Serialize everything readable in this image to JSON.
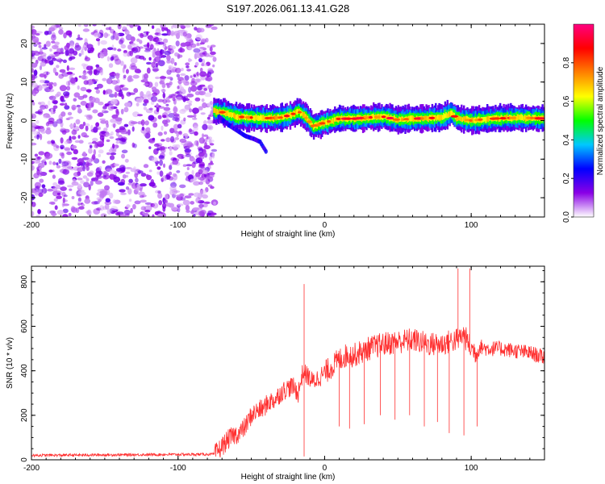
{
  "title": "S197.2026.061.13.41.G28",
  "chart_data": [
    {
      "type": "heatmap",
      "panel": "spectrogram",
      "xlabel": "Height of straight line (km)",
      "ylabel": "Frequency (Hz)",
      "xlim": [
        -200,
        150
      ],
      "ylim": [
        -25,
        25
      ],
      "xticks": [
        -200,
        -100,
        0,
        100
      ],
      "yticks": [
        -20,
        -10,
        0,
        10,
        20
      ],
      "colorbar": {
        "label": "Normalized spectral amplitude",
        "range": [
          0,
          1
        ],
        "ticks": [
          0.0,
          0.2,
          0.4,
          0.6,
          0.8
        ],
        "tick_labels": [
          "0.0",
          "0.2",
          "0.4",
          "0.6",
          "0.8"
        ],
        "colors": [
          "#ffffff",
          "#8a00e6",
          "#0000ff",
          "#00c8ff",
          "#00ff00",
          "#ffff00",
          "#ff8000",
          "#ff0000",
          "#ff0080"
        ]
      },
      "features": {
        "noise_region_x": [
          -200,
          -75
        ],
        "noise_region_y": [
          -25,
          25
        ],
        "noise_level": 0.12,
        "signal_trace": {
          "x": [
            -76,
            -70,
            -60,
            -50,
            -40,
            -30,
            -22,
            -18,
            -12,
            -8,
            0,
            10,
            20,
            30,
            40,
            50,
            60,
            70,
            80,
            86,
            90,
            100,
            110,
            120,
            130,
            140,
            150
          ],
          "freq": [
            2.5,
            2.2,
            1.0,
            0.8,
            0.6,
            0.8,
            1.6,
            2.5,
            0.5,
            -1.5,
            -0.5,
            0.5,
            0.5,
            0.8,
            1.0,
            0.2,
            0.5,
            0.6,
            0.8,
            2.0,
            0.6,
            0.0,
            0.4,
            0.6,
            0.7,
            0.7,
            0.5
          ],
          "peak_amplitude": 0.9
        },
        "secondary_trace": {
          "x": [
            -72,
            -66,
            -60,
            -54,
            -48,
            -44,
            -40
          ],
          "freq": [
            1.0,
            -1.0,
            -2.5,
            -4.0,
            -4.8,
            -5.5,
            -8.0
          ]
        }
      }
    },
    {
      "type": "line",
      "panel": "snr",
      "xlabel": "Height of straight line (km)",
      "ylabel": "SNR (10 * v/v)",
      "xlim": [
        -200,
        150
      ],
      "ylim": [
        0,
        870
      ],
      "xticks": [
        -200,
        -100,
        0,
        100
      ],
      "yticks": [
        0,
        200,
        400,
        600,
        800
      ],
      "line_color": "#ff3030",
      "series": [
        {
          "name": "SNR",
          "x": [
            -200,
            -150,
            -100,
            -75,
            -70,
            -66,
            -62,
            -58,
            -54,
            -50,
            -46,
            -42,
            -38,
            -34,
            -30,
            -26,
            -22,
            -18,
            -15,
            -12,
            -8,
            -4,
            0,
            5,
            10,
            15,
            20,
            30,
            40,
            50,
            60,
            70,
            80,
            90,
            95,
            100,
            104,
            106,
            110,
            120,
            130,
            140,
            150
          ],
          "y": [
            20,
            22,
            24,
            25,
            60,
            90,
            110,
            120,
            150,
            200,
            220,
            230,
            260,
            270,
            300,
            320,
            330,
            300,
            390,
            380,
            350,
            370,
            390,
            420,
            450,
            470,
            470,
            500,
            520,
            530,
            540,
            520,
            520,
            540,
            560,
            500,
            480,
            510,
            500,
            500,
            490,
            480,
            460
          ],
          "spikes": [
            {
              "x": -14,
              "y": 790
            },
            {
              "x": 91,
              "y": 860
            },
            {
              "x": 99,
              "y": 860
            }
          ],
          "dips": [
            {
              "x": -14,
              "y": 15
            },
            {
              "x": 10,
              "y": 150
            },
            {
              "x": 17,
              "y": 140
            },
            {
              "x": 27,
              "y": 160
            },
            {
              "x": 38,
              "y": 200
            },
            {
              "x": 48,
              "y": 180
            },
            {
              "x": 58,
              "y": 200
            },
            {
              "x": 68,
              "y": 150
            },
            {
              "x": 77,
              "y": 170
            },
            {
              "x": 85,
              "y": 120
            },
            {
              "x": 95,
              "y": 110
            },
            {
              "x": 104,
              "y": 150
            }
          ]
        }
      ]
    }
  ]
}
